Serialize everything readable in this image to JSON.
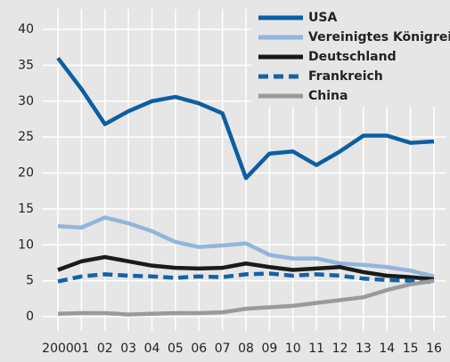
{
  "chart_data": {
    "type": "line",
    "categories": [
      "2000",
      "01",
      "02",
      "03",
      "04",
      "05",
      "06",
      "07",
      "08",
      "09",
      "10",
      "11",
      "12",
      "13",
      "14",
      "15",
      "16"
    ],
    "series": [
      {
        "name": "USA",
        "color": "#0b5fa3",
        "dashed": false,
        "values": [
          36,
          31.7,
          26.8,
          28.6,
          30,
          30.6,
          29.7,
          28.3,
          19.3,
          22.7,
          23,
          21.1,
          23,
          25.2,
          25.2,
          24.2,
          24.4
        ]
      },
      {
        "name": "Vereinigtes Königreich",
        "color": "#93b4dc",
        "dashed": false,
        "values": [
          12.6,
          12.4,
          13.8,
          13.0,
          11.9,
          10.4,
          9.7,
          9.9,
          10.2,
          8.6,
          8.1,
          8.1,
          7.4,
          7.2,
          6.9,
          6.4,
          5.6
        ]
      },
      {
        "name": "Deutschland",
        "color": "#1a1a1a",
        "dashed": false,
        "values": [
          6.5,
          7.7,
          8.3,
          7.7,
          7.1,
          6.8,
          6.7,
          6.8,
          7.4,
          6.9,
          6.5,
          6.7,
          6.9,
          6.2,
          5.7,
          5.5,
          5.2
        ]
      },
      {
        "name": "Frankreich",
        "color": "#1462aa",
        "dashed": true,
        "values": [
          4.9,
          5.6,
          5.9,
          5.7,
          5.6,
          5.4,
          5.6,
          5.5,
          5.9,
          6.0,
          5.7,
          5.9,
          5.7,
          5.3,
          5.1,
          5.0,
          4.8
        ]
      },
      {
        "name": "China",
        "color": "#9a9a9a",
        "dashed": false,
        "values": [
          0.4,
          0.5,
          0.5,
          0.3,
          0.4,
          0.5,
          0.5,
          0.6,
          1.1,
          1.3,
          1.5,
          1.9,
          2.3,
          2.7,
          3.7,
          4.5,
          5.0
        ]
      }
    ],
    "ylim": [
      0,
      40
    ],
    "yticks": [
      0,
      5,
      10,
      15,
      20,
      25,
      30,
      35,
      40
    ],
    "grid": true,
    "legend": "top-right"
  }
}
